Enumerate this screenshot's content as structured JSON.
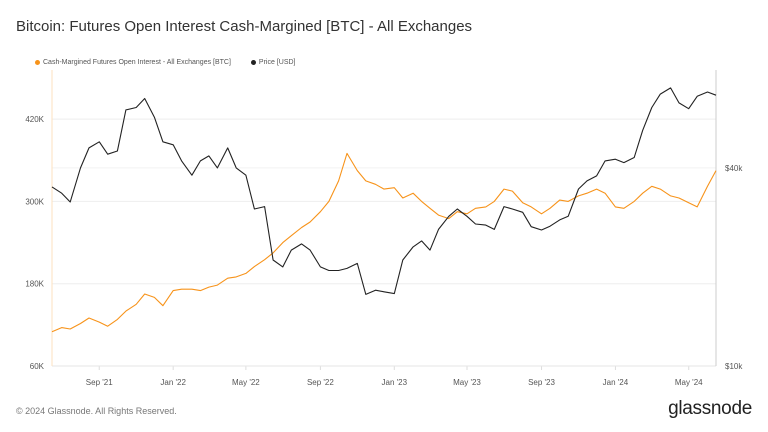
{
  "title": "Bitcoin: Futures Open Interest Cash-Margined [BTC] - All Exchanges",
  "footer": "© 2024 Glassnode. All Rights Reserved.",
  "logo": "glassnode",
  "chart_data": {
    "type": "line",
    "title": "Bitcoin: Futures Open Interest Cash-Margined [BTC] - All Exchanges",
    "legend_placement": "top-left",
    "grid": true,
    "x_ticks": [
      {
        "date": "2021-09-01",
        "label": "Sep '21"
      },
      {
        "date": "2022-01-01",
        "label": "Jan '22"
      },
      {
        "date": "2022-05-01",
        "label": "May '22"
      },
      {
        "date": "2022-09-01",
        "label": "Sep '22"
      },
      {
        "date": "2023-01-01",
        "label": "Jan '23"
      },
      {
        "date": "2023-05-01",
        "label": "May '23"
      },
      {
        "date": "2023-09-01",
        "label": "Sep '23"
      },
      {
        "date": "2024-01-01",
        "label": "Jan '24"
      },
      {
        "date": "2024-05-01",
        "label": "May '24"
      }
    ],
    "xlim": [
      "2021-06-15",
      "2024-06-15"
    ],
    "y_left": {
      "scale": "linear",
      "ylim": [
        60000,
        480000
      ],
      "ticks": [
        {
          "v": 60000,
          "label": "60K"
        },
        {
          "v": 180000,
          "label": "180K"
        },
        {
          "v": 300000,
          "label": "300K"
        },
        {
          "v": 420000,
          "label": "420K"
        }
      ]
    },
    "y_right": {
      "scale": "log",
      "ylim": [
        10000,
        75000
      ],
      "ticks": [
        {
          "v": 10000,
          "label": "$10k"
        },
        {
          "v": 40000,
          "label": "$40k"
        }
      ]
    },
    "dates": [
      "2021-06-15",
      "2021-07-01",
      "2021-07-15",
      "2021-08-01",
      "2021-08-15",
      "2021-09-01",
      "2021-09-15",
      "2021-10-01",
      "2021-10-15",
      "2021-11-01",
      "2021-11-15",
      "2021-12-01",
      "2021-12-15",
      "2022-01-01",
      "2022-01-15",
      "2022-02-01",
      "2022-02-15",
      "2022-03-01",
      "2022-03-15",
      "2022-04-01",
      "2022-04-15",
      "2022-05-01",
      "2022-05-15",
      "2022-06-01",
      "2022-06-15",
      "2022-07-01",
      "2022-07-15",
      "2022-08-01",
      "2022-08-15",
      "2022-09-01",
      "2022-09-15",
      "2022-10-01",
      "2022-10-15",
      "2022-11-01",
      "2022-11-15",
      "2022-12-01",
      "2022-12-15",
      "2023-01-01",
      "2023-01-15",
      "2023-02-01",
      "2023-02-15",
      "2023-03-01",
      "2023-03-15",
      "2023-04-01",
      "2023-04-15",
      "2023-05-01",
      "2023-05-15",
      "2023-06-01",
      "2023-06-15",
      "2023-07-01",
      "2023-07-15",
      "2023-08-01",
      "2023-08-15",
      "2023-09-01",
      "2023-09-15",
      "2023-10-01",
      "2023-10-15",
      "2023-11-01",
      "2023-11-15",
      "2023-12-01",
      "2023-12-15",
      "2024-01-01",
      "2024-01-15",
      "2024-02-01",
      "2024-02-15",
      "2024-03-01",
      "2024-03-15",
      "2024-04-01",
      "2024-04-15",
      "2024-05-01",
      "2024-05-15",
      "2024-06-01",
      "2024-06-15"
    ],
    "series": [
      {
        "name": "Cash-Margined Futures Open Interest - All Exchanges [BTC]",
        "axis": "left",
        "color": "#f7931a",
        "values": [
          110000,
          116000,
          114000,
          122000,
          130000,
          124000,
          118000,
          128000,
          140000,
          150000,
          165000,
          160000,
          148000,
          170000,
          172000,
          172000,
          170000,
          175000,
          178000,
          188000,
          190000,
          195000,
          205000,
          215000,
          225000,
          240000,
          250000,
          262000,
          270000,
          285000,
          300000,
          330000,
          370000,
          345000,
          330000,
          325000,
          318000,
          320000,
          305000,
          312000,
          300000,
          290000,
          280000,
          275000,
          285000,
          282000,
          290000,
          292000,
          300000,
          318000,
          315000,
          298000,
          292000,
          282000,
          290000,
          302000,
          300000,
          308000,
          312000,
          318000,
          312000,
          292000,
          290000,
          300000,
          312000,
          322000,
          318000,
          308000,
          305000,
          298000,
          292000,
          322000,
          345000
        ]
      },
      {
        "name": "Price [USD]",
        "axis": "right",
        "color": "#222222",
        "values": [
          35000,
          33500,
          31500,
          40000,
          46000,
          48000,
          44000,
          45000,
          60000,
          61000,
          65000,
          57000,
          48000,
          47000,
          42000,
          38000,
          42000,
          43500,
          40000,
          46000,
          40000,
          38000,
          30000,
          30500,
          21000,
          20000,
          22500,
          23500,
          22500,
          20000,
          19500,
          19500,
          19800,
          20500,
          16500,
          17000,
          16800,
          16600,
          21000,
          23000,
          24000,
          22500,
          26000,
          28500,
          30000,
          28500,
          27000,
          26800,
          26000,
          30500,
          30000,
          29300,
          26500,
          25900,
          26600,
          27800,
          28500,
          34500,
          36500,
          37800,
          42000,
          42500,
          41500,
          43000,
          52000,
          61000,
          67000,
          70000,
          63000,
          60500,
          66000,
          68000,
          66500
        ]
      }
    ]
  }
}
